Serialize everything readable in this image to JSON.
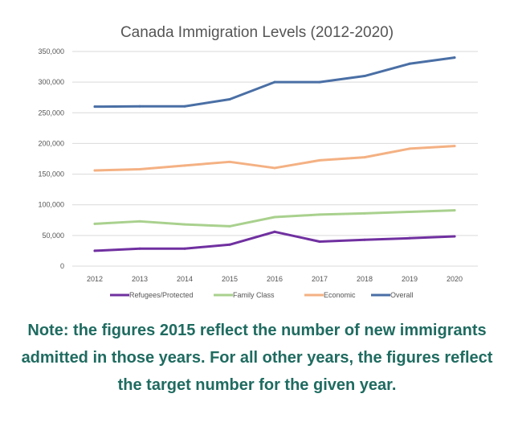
{
  "chart_data": {
    "type": "line",
    "title": "Canada Immigration Levels (2012-2020)",
    "xlabel": "",
    "ylabel": "",
    "categories": [
      "2012",
      "2013",
      "2014",
      "2015",
      "2016",
      "2017",
      "2018",
      "2019",
      "2020"
    ],
    "ylim": [
      0,
      350000
    ],
    "yticks": [
      "0",
      "50,000",
      "100,000",
      "150,000",
      "200,000",
      "250,000",
      "300,000",
      "350,000"
    ],
    "grid": true,
    "legend_position": "bottom",
    "series": [
      {
        "name": "Refugees/Protected",
        "color": "#7030a0",
        "values": [
          25000,
          28500,
          28500,
          35000,
          56000,
          40000,
          43000,
          45500,
          48500
        ]
      },
      {
        "name": "Family Class",
        "color": "#a9d18e",
        "values": [
          69000,
          73000,
          68000,
          65000,
          80000,
          84000,
          86000,
          88500,
          91000
        ]
      },
      {
        "name": "Economic",
        "color": "#f4b183",
        "values": [
          156000,
          158000,
          164000,
          170000,
          160000,
          172500,
          177500,
          191500,
          195800
        ]
      },
      {
        "name": "Overall",
        "color": "#4a6fa5",
        "values": [
          260000,
          260500,
          260500,
          272000,
          300000,
          300000,
          310000,
          330000,
          340000
        ]
      }
    ]
  },
  "note": {
    "text": "Note: the figures 2015 reflect the number of new immigrants admitted in those years. For all other years, the figures reflect the target number for the given year.",
    "color": "#1f6b60"
  }
}
